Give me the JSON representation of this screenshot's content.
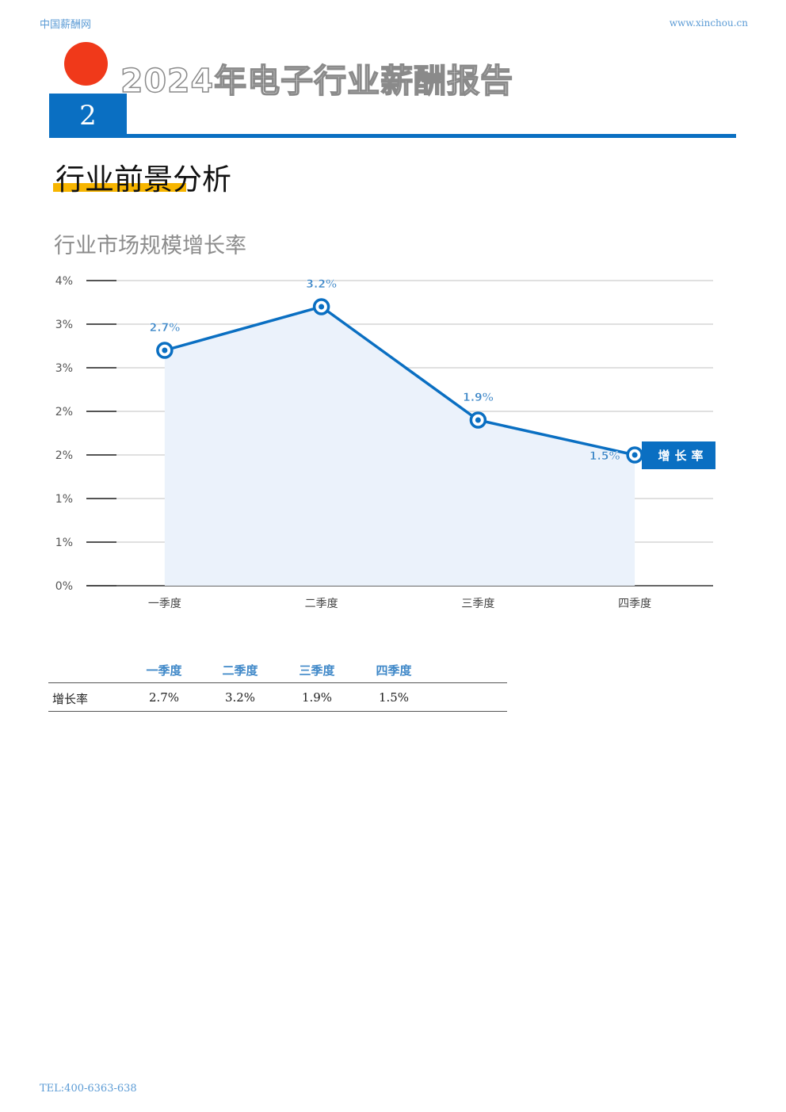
{
  "header": {
    "site_name": "中国薪酬网",
    "site_url": "www.xinchou.cn"
  },
  "report": {
    "title": "2024年电子行业薪酬报告",
    "chapter_number": "2"
  },
  "section": {
    "title": "行业前景分析"
  },
  "chart_data": {
    "type": "line",
    "title": "行业市场规模增长率",
    "categories": [
      "一季度",
      "二季度",
      "三季度",
      "四季度"
    ],
    "series": [
      {
        "name": "增长率",
        "values": [
          2.7,
          3.2,
          1.9,
          1.5
        ],
        "labels": [
          "2.7%",
          "3.2%",
          "1.9%",
          "1.5%"
        ]
      }
    ],
    "ylim": [
      0,
      3.5
    ],
    "yticks": [
      0,
      0.5,
      1,
      1.5,
      2,
      2.5,
      3,
      3.5
    ],
    "ytick_labels": [
      "0%",
      "1%",
      "1%",
      "2%",
      "2%",
      "3%",
      "3%",
      "4%"
    ],
    "grid": true,
    "legend": "right",
    "colors": {
      "line": "#0a6fc2",
      "fill": "#ebf2fb",
      "label": "#3f88c8"
    }
  },
  "table": {
    "headers": [
      "一季度",
      "二季度",
      "三季度",
      "四季度"
    ],
    "rows": [
      {
        "label": "增长率",
        "values": [
          "2.7%",
          "3.2%",
          "1.9%",
          "1.5%"
        ]
      }
    ]
  },
  "footer": {
    "tel": "TEL:400-6363-638"
  }
}
